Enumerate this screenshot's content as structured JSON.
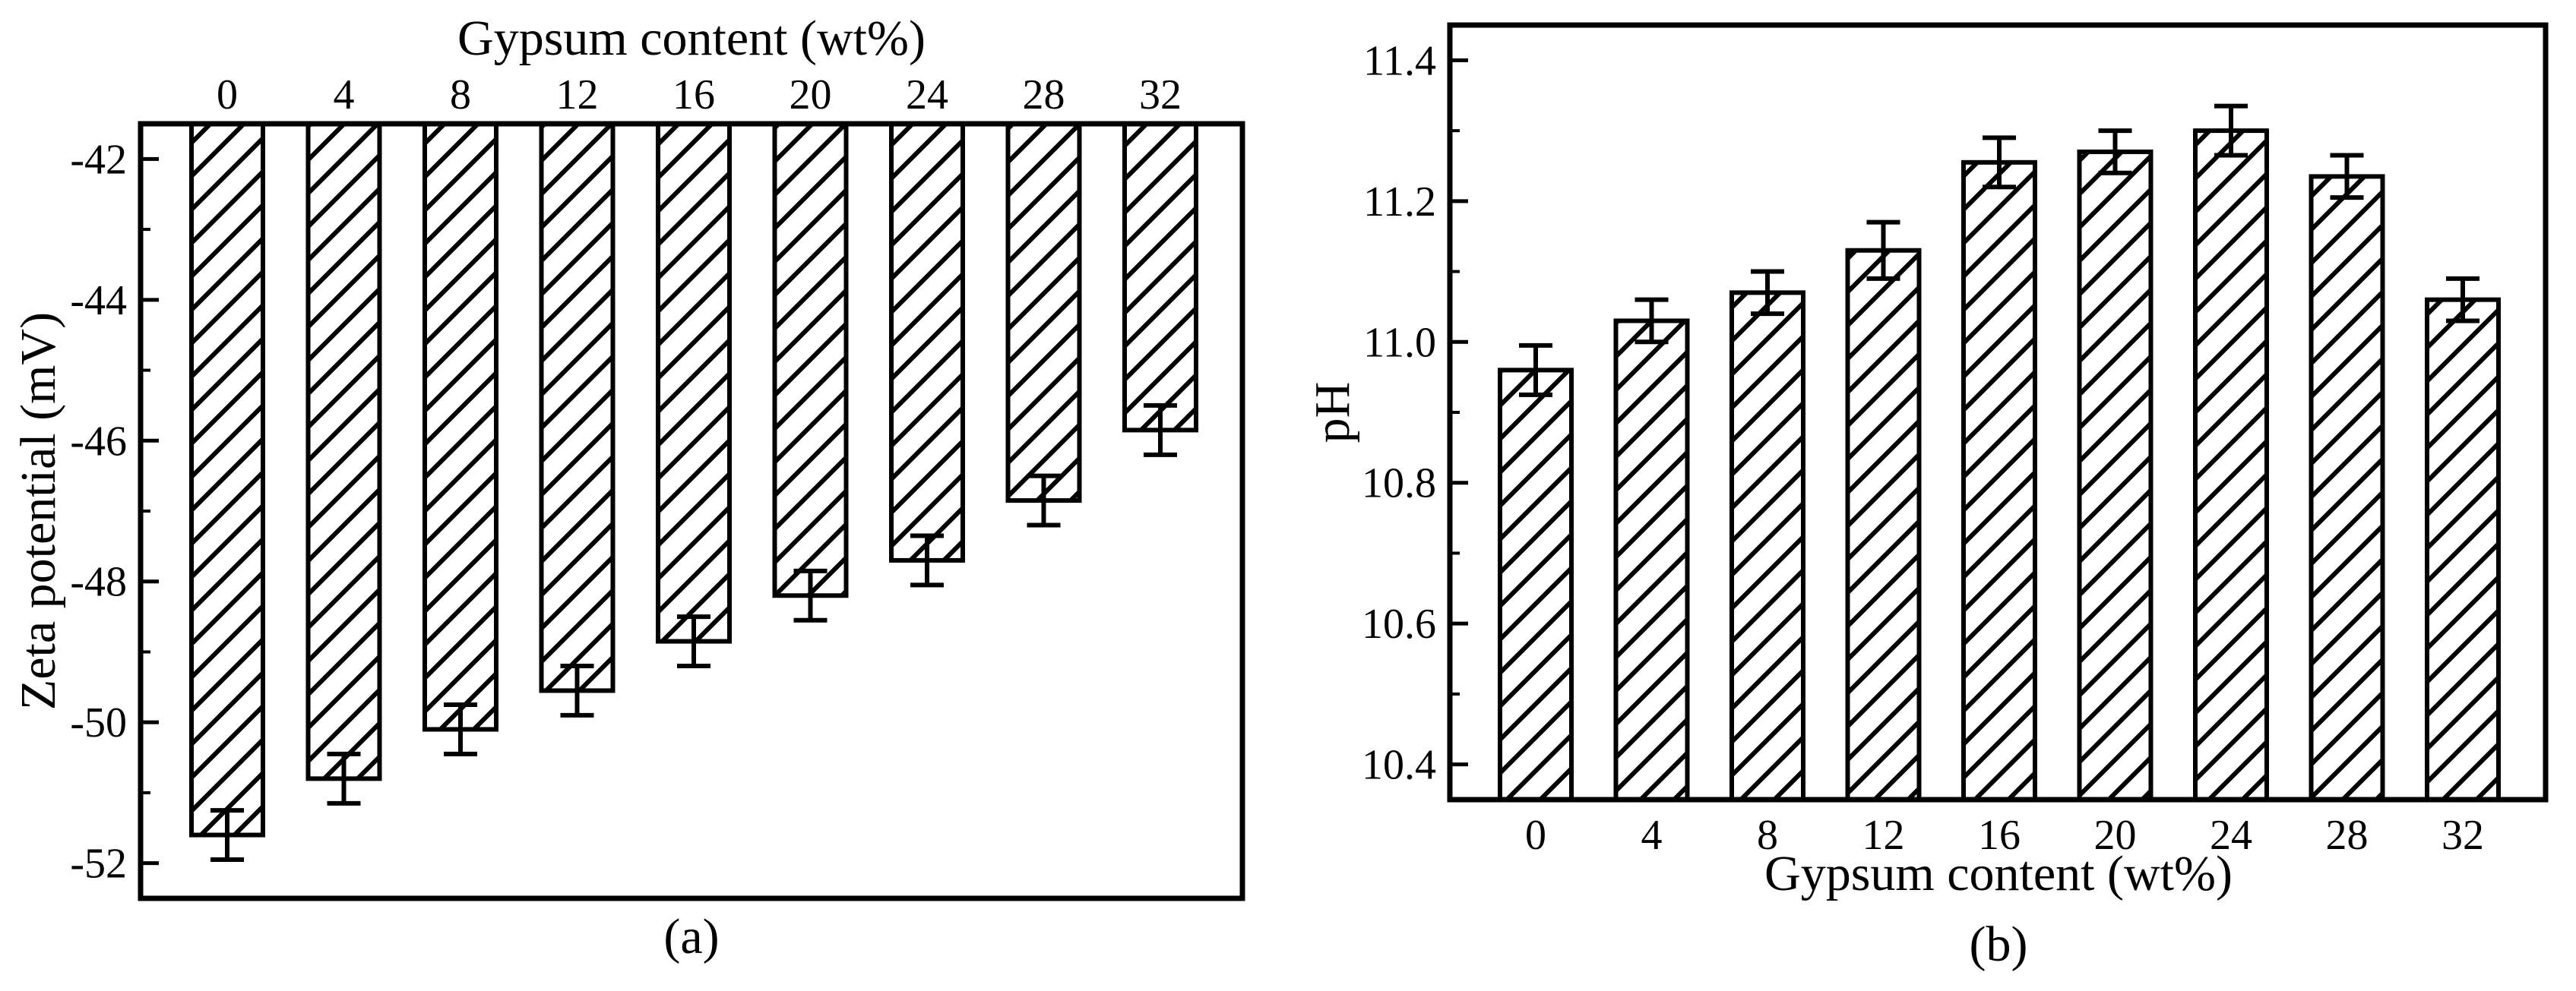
{
  "chart_data": [
    {
      "type": "bar",
      "panel_label": "(a)",
      "title": "",
      "xlabel": "Gypsum content (wt%)",
      "xlabel_position": "top",
      "ylabel": "Zeta potential (mV)",
      "categories": [
        "0",
        "4",
        "8",
        "12",
        "16",
        "20",
        "24",
        "28",
        "32"
      ],
      "values": [
        -51.6,
        -50.8,
        -50.1,
        -49.55,
        -48.85,
        -48.2,
        -47.7,
        -46.85,
        -45.85
      ],
      "errors": [
        0.35,
        0.35,
        0.35,
        0.35,
        0.35,
        0.35,
        0.35,
        0.35,
        0.35
      ],
      "ylim": [
        -52.5,
        -41.5
      ],
      "yticks": [
        -42,
        -44,
        -46,
        -48,
        -50,
        -52
      ],
      "ytick_labels": [
        "-42",
        "-44",
        "-46",
        "-48",
        "-50",
        "-52"
      ],
      "bars_hang_from": "top",
      "bar_fill": "hatched",
      "grid": false
    },
    {
      "type": "bar",
      "panel_label": "(b)",
      "title": "",
      "xlabel": "Gypsum content (wt%)",
      "xlabel_position": "bottom",
      "ylabel": "pH",
      "categories": [
        "0",
        "4",
        "8",
        "12",
        "16",
        "20",
        "24",
        "28",
        "32"
      ],
      "values": [
        10.96,
        11.03,
        11.07,
        11.13,
        11.255,
        11.27,
        11.3,
        11.235,
        11.06
      ],
      "errors": [
        0.035,
        0.03,
        0.03,
        0.04,
        0.035,
        0.03,
        0.035,
        0.03,
        0.03
      ],
      "ylim": [
        10.35,
        11.45
      ],
      "yticks": [
        10.4,
        10.6,
        10.8,
        11.0,
        11.2,
        11.4
      ],
      "ytick_labels": [
        "10.4",
        "10.6",
        "10.8",
        "11.0",
        "11.2",
        "11.4"
      ],
      "bars_hang_from": "bottom",
      "bar_fill": "hatched",
      "grid": false
    }
  ]
}
